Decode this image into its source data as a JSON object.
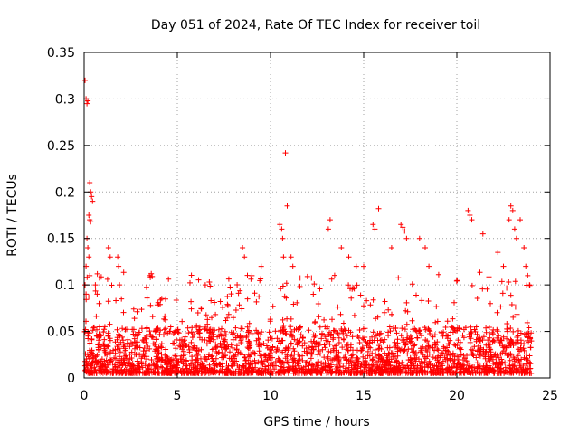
{
  "chart_data": {
    "type": "scatter",
    "title": "Day 051 of 2024, Rate Of TEC Index for receiver toil",
    "xlabel": "GPS time / hours",
    "ylabel": "ROTI / TECUs",
    "xlim": [
      0,
      25
    ],
    "ylim": [
      0,
      0.35
    ],
    "xticks": [
      0,
      5,
      10,
      15,
      20,
      25
    ],
    "xtick_labels": [
      "0",
      "5",
      "10",
      "15",
      "20",
      "25"
    ],
    "yticks": [
      0,
      0.05,
      0.1,
      0.15,
      0.2,
      0.25,
      0.3,
      0.35
    ],
    "ytick_labels": [
      "0",
      "0.05",
      "0.1",
      "0.15",
      "0.2",
      "0.25",
      "0.3",
      "0.35"
    ],
    "grid": true,
    "marker": "plus",
    "marker_color": "#ff0000",
    "series": [
      {
        "name": "ROTI",
        "points": [
          [
            0.05,
            0.32
          ],
          [
            0.1,
            0.3
          ],
          [
            0.15,
            0.295
          ],
          [
            0.2,
            0.298
          ],
          [
            0.3,
            0.21
          ],
          [
            0.35,
            0.2
          ],
          [
            0.4,
            0.195
          ],
          [
            0.25,
            0.175
          ],
          [
            0.3,
            0.17
          ],
          [
            0.35,
            0.168
          ],
          [
            0.45,
            0.19
          ],
          [
            0.15,
            0.15
          ],
          [
            0.2,
            0.14
          ],
          [
            0.25,
            0.13
          ],
          [
            0.1,
            0.12
          ],
          [
            0.05,
            0.1
          ],
          [
            0.1,
            0.09
          ],
          [
            0.3,
            0.11
          ],
          [
            0.6,
            0.1
          ],
          [
            0.7,
            0.09
          ],
          [
            0.8,
            0.08
          ],
          [
            1.3,
            0.14
          ],
          [
            1.4,
            0.13
          ],
          [
            1.8,
            0.13
          ],
          [
            1.85,
            0.12
          ],
          [
            1.9,
            0.1
          ],
          [
            2.0,
            0.085
          ],
          [
            3.5,
            0.11
          ],
          [
            3.55,
            0.108
          ],
          [
            3.6,
            0.112
          ],
          [
            3.65,
            0.109
          ],
          [
            6.5,
            0.1
          ],
          [
            8.5,
            0.14
          ],
          [
            8.6,
            0.13
          ],
          [
            9.0,
            0.11
          ],
          [
            9.5,
            0.12
          ],
          [
            10.8,
            0.242
          ],
          [
            10.9,
            0.185
          ],
          [
            10.5,
            0.165
          ],
          [
            10.6,
            0.16
          ],
          [
            10.65,
            0.15
          ],
          [
            10.7,
            0.13
          ],
          [
            11.1,
            0.13
          ],
          [
            11.2,
            0.12
          ],
          [
            13.2,
            0.17
          ],
          [
            13.1,
            0.16
          ],
          [
            13.8,
            0.14
          ],
          [
            14.2,
            0.13
          ],
          [
            14.6,
            0.12
          ],
          [
            15.0,
            0.12
          ],
          [
            15.5,
            0.165
          ],
          [
            15.6,
            0.16
          ],
          [
            15.8,
            0.182
          ],
          [
            16.5,
            0.14
          ],
          [
            17.0,
            0.165
          ],
          [
            17.1,
            0.162
          ],
          [
            17.2,
            0.158
          ],
          [
            17.3,
            0.15
          ],
          [
            18.0,
            0.15
          ],
          [
            18.3,
            0.14
          ],
          [
            18.5,
            0.12
          ],
          [
            20.6,
            0.18
          ],
          [
            20.7,
            0.175
          ],
          [
            20.8,
            0.17
          ],
          [
            21.4,
            0.155
          ],
          [
            22.2,
            0.135
          ],
          [
            22.5,
            0.12
          ],
          [
            22.8,
            0.17
          ],
          [
            22.9,
            0.185
          ],
          [
            23.0,
            0.18
          ],
          [
            23.1,
            0.16
          ],
          [
            23.2,
            0.15
          ],
          [
            23.4,
            0.17
          ],
          [
            23.6,
            0.14
          ],
          [
            23.7,
            0.12
          ],
          [
            23.8,
            0.11
          ],
          [
            23.9,
            0.1
          ]
        ],
        "dense_band": {
          "x_range": [
            0,
            24
          ],
          "y_floor": 0.005,
          "typical_top": 0.05,
          "max_top": 0.11
        }
      }
    ]
  }
}
